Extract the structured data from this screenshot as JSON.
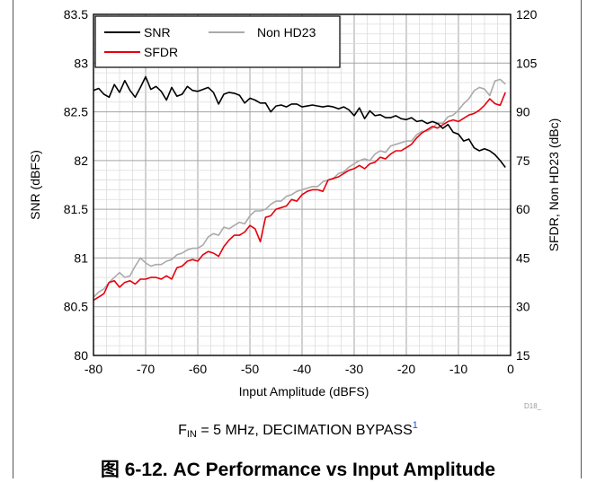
{
  "chart_data": {
    "type": "line",
    "xlabel": "Input Amplitude (dBFS)",
    "ylabel": "SNR (dBFS)",
    "y2label": "SFDR, Non HD23 (dBc)",
    "xlim": [
      -80,
      0
    ],
    "ylim": [
      80,
      83.5
    ],
    "y2lim": [
      15,
      120
    ],
    "x_ticks": [
      "-80",
      "-70",
      "-60",
      "-50",
      "-40",
      "-30",
      "-20",
      "-10",
      "0"
    ],
    "y_ticks": [
      "83.5",
      "83",
      "82.5",
      "82",
      "81.5",
      "81",
      "80.5",
      "80"
    ],
    "y2_ticks": [
      "120",
      "105",
      "90",
      "75",
      "60",
      "45",
      "30",
      "15"
    ],
    "grid": true,
    "legend_position": "top-left",
    "tag": "D18_",
    "series": [
      {
        "name": "SNR",
        "axis": "left",
        "color": "#000000",
        "x": [
          -80,
          -79,
          -78,
          -77,
          -76,
          -75,
          -74,
          -73,
          -72,
          -71,
          -70,
          -69,
          -68,
          -67,
          -66,
          -65,
          -64,
          -63,
          -62,
          -61,
          -60,
          -59,
          -58,
          -57,
          -56,
          -55,
          -54,
          -53,
          -52,
          -51,
          -50,
          -49,
          -48,
          -47,
          -46,
          -45,
          -44,
          -43,
          -42,
          -41,
          -40,
          -39,
          -38,
          -37,
          -36,
          -35,
          -34,
          -33,
          -32,
          -31,
          -30,
          -29,
          -28,
          -27,
          -26,
          -25,
          -24,
          -23,
          -22,
          -21,
          -20,
          -19,
          -18,
          -17,
          -16,
          -15,
          -14,
          -13,
          -12,
          -11,
          -10,
          -9,
          -8,
          -7,
          -6,
          -5,
          -4,
          -3,
          -2,
          -1
        ],
        "y": [
          82.72,
          82.74,
          82.68,
          82.65,
          82.78,
          82.7,
          82.82,
          82.72,
          82.65,
          82.75,
          82.86,
          82.73,
          82.76,
          82.71,
          82.62,
          82.75,
          82.66,
          82.68,
          82.76,
          82.72,
          82.71,
          82.73,
          82.75,
          82.7,
          82.58,
          82.68,
          82.7,
          82.69,
          82.67,
          82.59,
          82.64,
          82.62,
          82.59,
          82.59,
          82.5,
          82.56,
          82.57,
          82.55,
          82.58,
          82.58,
          82.55,
          82.56,
          82.57,
          82.56,
          82.55,
          82.56,
          82.55,
          82.53,
          82.55,
          82.52,
          82.46,
          82.54,
          82.43,
          82.51,
          82.46,
          82.47,
          82.44,
          82.44,
          82.46,
          82.43,
          82.42,
          82.44,
          82.4,
          82.41,
          82.38,
          82.4,
          82.38,
          82.33,
          82.37,
          82.29,
          82.27,
          82.2,
          82.22,
          82.13,
          82.1,
          82.12,
          82.1,
          82.06,
          82.0,
          81.93
        ]
      },
      {
        "name": "SFDR",
        "axis": "right",
        "color": "#e8000b",
        "x": [
          -80,
          -79,
          -78,
          -77,
          -76,
          -75,
          -74,
          -73,
          -72,
          -71,
          -70,
          -69,
          -68,
          -67,
          -66,
          -65,
          -64,
          -63,
          -62,
          -61,
          -60,
          -59,
          -58,
          -57,
          -56,
          -55,
          -54,
          -53,
          -52,
          -51,
          -50,
          -49,
          -48,
          -47,
          -46,
          -45,
          -44,
          -43,
          -42,
          -41,
          -40,
          -39,
          -38,
          -37,
          -36,
          -35,
          -34,
          -33,
          -32,
          -31,
          -30,
          -29,
          -28,
          -27,
          -26,
          -25,
          -24,
          -23,
          -22,
          -21,
          -20,
          -19,
          -18,
          -17,
          -16,
          -15,
          -14,
          -13,
          -12,
          -11,
          -10,
          -9,
          -8,
          -7,
          -6,
          -5,
          -4,
          -3,
          -2,
          -1
        ],
        "y": [
          32.0,
          33.0,
          34.0,
          37.5,
          38.0,
          36.0,
          37.5,
          38.0,
          37.0,
          38.5,
          38.5,
          39.0,
          39.0,
          38.5,
          39.5,
          38.5,
          42.0,
          42.5,
          44.0,
          44.5,
          44.0,
          46.0,
          47.0,
          46.5,
          45.5,
          48.5,
          50.5,
          52.0,
          52.0,
          53.0,
          55.0,
          54.0,
          50.0,
          57.5,
          58.0,
          60.0,
          60.5,
          61.0,
          63.0,
          62.5,
          64.5,
          65.5,
          66.0,
          66.0,
          65.5,
          69.0,
          69.5,
          70.0,
          71.0,
          72.0,
          72.5,
          73.5,
          72.5,
          74.0,
          74.5,
          76.0,
          75.5,
          77.0,
          78.0,
          78.0,
          79.0,
          80.0,
          82.0,
          83.5,
          84.5,
          85.5,
          85.0,
          86.0,
          87.0,
          87.5,
          87.0,
          88.0,
          89.0,
          89.5,
          90.5,
          92.0,
          94.0,
          92.5,
          92.0,
          96.0
        ]
      },
      {
        "name": "Non HD23",
        "axis": "right",
        "color": "#aaaaaa",
        "x": [
          -80,
          -79,
          -78,
          -77,
          -76,
          -75,
          -74,
          -73,
          -72,
          -71,
          -70,
          -69,
          -68,
          -67,
          -66,
          -65,
          -64,
          -63,
          -62,
          -61,
          -60,
          -59,
          -58,
          -57,
          -56,
          -55,
          -54,
          -53,
          -52,
          -51,
          -50,
          -49,
          -48,
          -47,
          -46,
          -45,
          -44,
          -43,
          -42,
          -41,
          -40,
          -39,
          -38,
          -37,
          -36,
          -35,
          -34,
          -33,
          -32,
          -31,
          -30,
          -29,
          -28,
          -27,
          -26,
          -25,
          -24,
          -23,
          -22,
          -21,
          -20,
          -19,
          -18,
          -17,
          -16,
          -15,
          -14,
          -13,
          -12,
          -11,
          -10,
          -9,
          -8,
          -7,
          -6,
          -5,
          -4,
          -3,
          -2,
          -1
        ],
        "y": [
          33.0,
          34.5,
          35.5,
          37.5,
          39.0,
          40.5,
          39.0,
          39.5,
          42.5,
          45.0,
          43.5,
          42.5,
          43.0,
          43.0,
          44.0,
          44.5,
          46.0,
          46.5,
          47.5,
          48.0,
          48.0,
          49.0,
          51.5,
          52.5,
          52.0,
          54.5,
          54.0,
          55.0,
          56.0,
          55.5,
          58.0,
          59.5,
          59.5,
          60.0,
          61.5,
          62.5,
          62.5,
          64.0,
          64.5,
          65.5,
          66.0,
          66.5,
          67.0,
          67.0,
          68.5,
          69.0,
          69.5,
          71.0,
          71.5,
          73.0,
          74.0,
          75.0,
          75.5,
          75.0,
          77.0,
          78.0,
          77.5,
          79.5,
          80.0,
          80.5,
          81.0,
          81.0,
          83.0,
          84.0,
          84.0,
          85.0,
          86.5,
          86.5,
          88.5,
          89.0,
          90.5,
          92.5,
          94.0,
          96.5,
          97.5,
          97.0,
          95.0,
          99.5,
          100.0,
          98.5
        ]
      }
    ]
  },
  "caption": {
    "condition_main": "F",
    "condition_sub": "IN",
    "condition_rest": " = 5 MHz, DECIMATION BYPASS",
    "condition_footnote": "1",
    "figure_title": "图 6-12. AC Performance vs Input Amplitude"
  }
}
